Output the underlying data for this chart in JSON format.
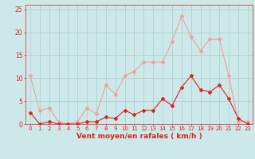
{
  "x": [
    0,
    1,
    2,
    3,
    4,
    5,
    6,
    7,
    8,
    9,
    10,
    11,
    12,
    13,
    14,
    15,
    16,
    17,
    18,
    19,
    20,
    21,
    22,
    23
  ],
  "wind_avg": [
    2.5,
    0,
    0.5,
    0,
    0,
    0,
    0.5,
    0.5,
    1.5,
    1.2,
    3.0,
    2.0,
    3.0,
    3.0,
    5.5,
    4.0,
    8.0,
    10.5,
    7.5,
    7.0,
    8.5,
    5.5,
    1.2,
    0
  ],
  "wind_gust": [
    10.5,
    3.0,
    3.5,
    0.5,
    0,
    0.5,
    3.5,
    2.2,
    8.5,
    6.5,
    10.5,
    11.5,
    13.5,
    13.5,
    13.5,
    18.0,
    23.5,
    19.0,
    16.0,
    18.5,
    18.5,
    10.5,
    0.5,
    0.5
  ],
  "xlabel": "Vent moyen/en rafales ( km/h )",
  "ylim": [
    0,
    26
  ],
  "xlim": [
    -0.5,
    23.5
  ],
  "yticks": [
    0,
    5,
    10,
    15,
    20,
    25
  ],
  "xticks": [
    0,
    1,
    2,
    3,
    4,
    5,
    6,
    7,
    8,
    9,
    10,
    11,
    12,
    13,
    14,
    15,
    16,
    17,
    18,
    19,
    20,
    21,
    22,
    23
  ],
  "bg_color": "#cce8e8",
  "grid_color": "#a8cccc",
  "avg_color": "#dd2222",
  "gust_color": "#f0a0a0",
  "line_width": 0.8,
  "marker_size": 2.0,
  "tick_color": "#dd2222",
  "label_color": "#dd2222",
  "tick_fontsize": 5.0,
  "xlabel_fontsize": 6.5
}
